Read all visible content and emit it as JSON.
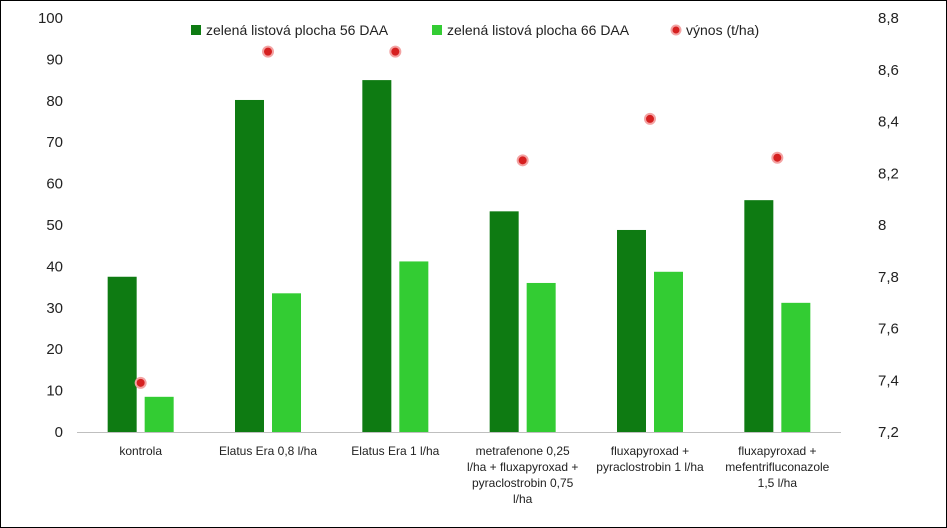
{
  "chart_data": {
    "type": "bar",
    "categories": [
      [
        "kontrola"
      ],
      [
        "Elatus Era 0,8 l/ha"
      ],
      [
        "Elatus Era 1 l/ha"
      ],
      [
        "metrafenone 0,25",
        "l/ha + fluxapyroxad +",
        "pyraclostrobin 0,75",
        "l/ha"
      ],
      [
        "fluxapyroxad +",
        "pyraclostrobin 1 l/ha"
      ],
      [
        "fluxapyroxad +",
        "mefentrifluconazole",
        "1,5 l/ha"
      ]
    ],
    "series": [
      {
        "name": "zelená listová plocha 56 DAA",
        "axis": "left",
        "kind": "bar",
        "color": "#0e7b12",
        "values": [
          37.5,
          80.2,
          85.0,
          53.3,
          48.8,
          56.0
        ]
      },
      {
        "name": "zelená listová plocha 66 DAA",
        "axis": "left",
        "kind": "bar",
        "color": "#33cc33",
        "values": [
          8.5,
          33.5,
          41.2,
          36.0,
          38.7,
          31.2
        ]
      },
      {
        "name": "výnos (t/ha)",
        "axis": "right",
        "kind": "scatter",
        "color": "#d62020",
        "values": [
          7.39,
          8.67,
          8.67,
          8.25,
          8.41,
          8.26
        ]
      }
    ],
    "y_left": {
      "min": 0,
      "max": 100,
      "step": 10,
      "ticks": [
        "0",
        "10",
        "20",
        "30",
        "40",
        "50",
        "60",
        "70",
        "80",
        "90",
        "100"
      ]
    },
    "y_right": {
      "min": 7.2,
      "max": 8.8,
      "step": 0.2,
      "ticks": [
        "7,2",
        "7,4",
        "7,6",
        "7,8",
        "8",
        "8,2",
        "8,4",
        "8,6",
        "8,8"
      ]
    },
    "legend_position": "top",
    "grid": false
  }
}
